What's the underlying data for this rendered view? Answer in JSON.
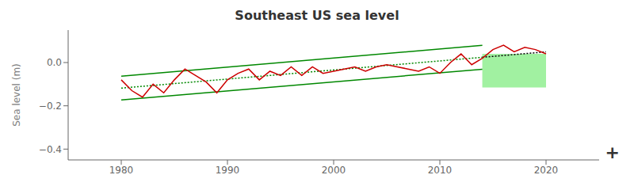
{
  "chart_data": {
    "type": "line",
    "title": "Southeast US sea level",
    "ylabel": "Sea level (m)",
    "xlim": [
      1975,
      2025
    ],
    "xticks": [
      1980,
      1990,
      2000,
      2010,
      2020
    ],
    "ylim": [
      -0.45,
      0.15
    ],
    "yticks": [
      {
        "value": 0,
        "label": "0.0"
      },
      {
        "value": -0.2,
        "label": "−0.2"
      },
      {
        "value": -0.4,
        "label": "−0.4"
      }
    ],
    "grid": false,
    "series": [
      {
        "x": [
          1980,
          2014
        ],
        "values": [
          -0.063223,
          0.079293
        ],
        "color": "#008800",
        "line_style": "solid"
      },
      {
        "x": [
          1980,
          2014
        ],
        "values": [
          -0.173223,
          -0.030707
        ],
        "color": "#008800",
        "line_style": "solid"
      },
      {
        "x": [
          1980,
          2014
        ],
        "values": [
          -0.118223,
          0.024293
        ],
        "color": "#008800",
        "line_style": "dotted"
      },
      {
        "x": [
          2014,
          2020
        ],
        "values": [
          0.024293,
          0.049443
        ],
        "color": "#000000",
        "line_style": "dotted"
      },
      {
        "x": [
          1980,
          1981,
          1982,
          1983,
          1984,
          1985,
          1986,
          1987,
          1988,
          1989,
          1990,
          1991,
          1992,
          1993,
          1994,
          1995,
          1996,
          1997,
          1998,
          1999,
          2000,
          2001,
          2002,
          2003,
          2004,
          2005,
          2006,
          2007,
          2008,
          2009,
          2010,
          2011,
          2012,
          2013,
          2014,
          2015,
          2016,
          2017,
          2018,
          2019,
          2020
        ],
        "values": [
          -0.08,
          -0.13,
          -0.16,
          -0.1,
          -0.14,
          -0.08,
          -0.03,
          -0.06,
          -0.09,
          -0.14,
          -0.08,
          -0.05,
          -0.03,
          -0.08,
          -0.04,
          -0.06,
          -0.02,
          -0.06,
          -0.02,
          -0.05,
          -0.04,
          -0.03,
          -0.02,
          -0.04,
          -0.02,
          -0.01,
          -0.02,
          -0.03,
          -0.04,
          -0.02,
          -0.05,
          0.0,
          0.04,
          -0.01,
          0.02,
          0.06,
          0.08,
          0.05,
          0.07,
          0.06,
          0.04
        ],
        "color": "#cc0000",
        "line_style": "solid"
      }
    ],
    "box": {
      "x0": 2014,
      "x1": 2020,
      "y0": -0.115,
      "y1": 0.04,
      "color": "#90ee90"
    },
    "annotations": [
      {
        "text": "+"
      }
    ]
  }
}
